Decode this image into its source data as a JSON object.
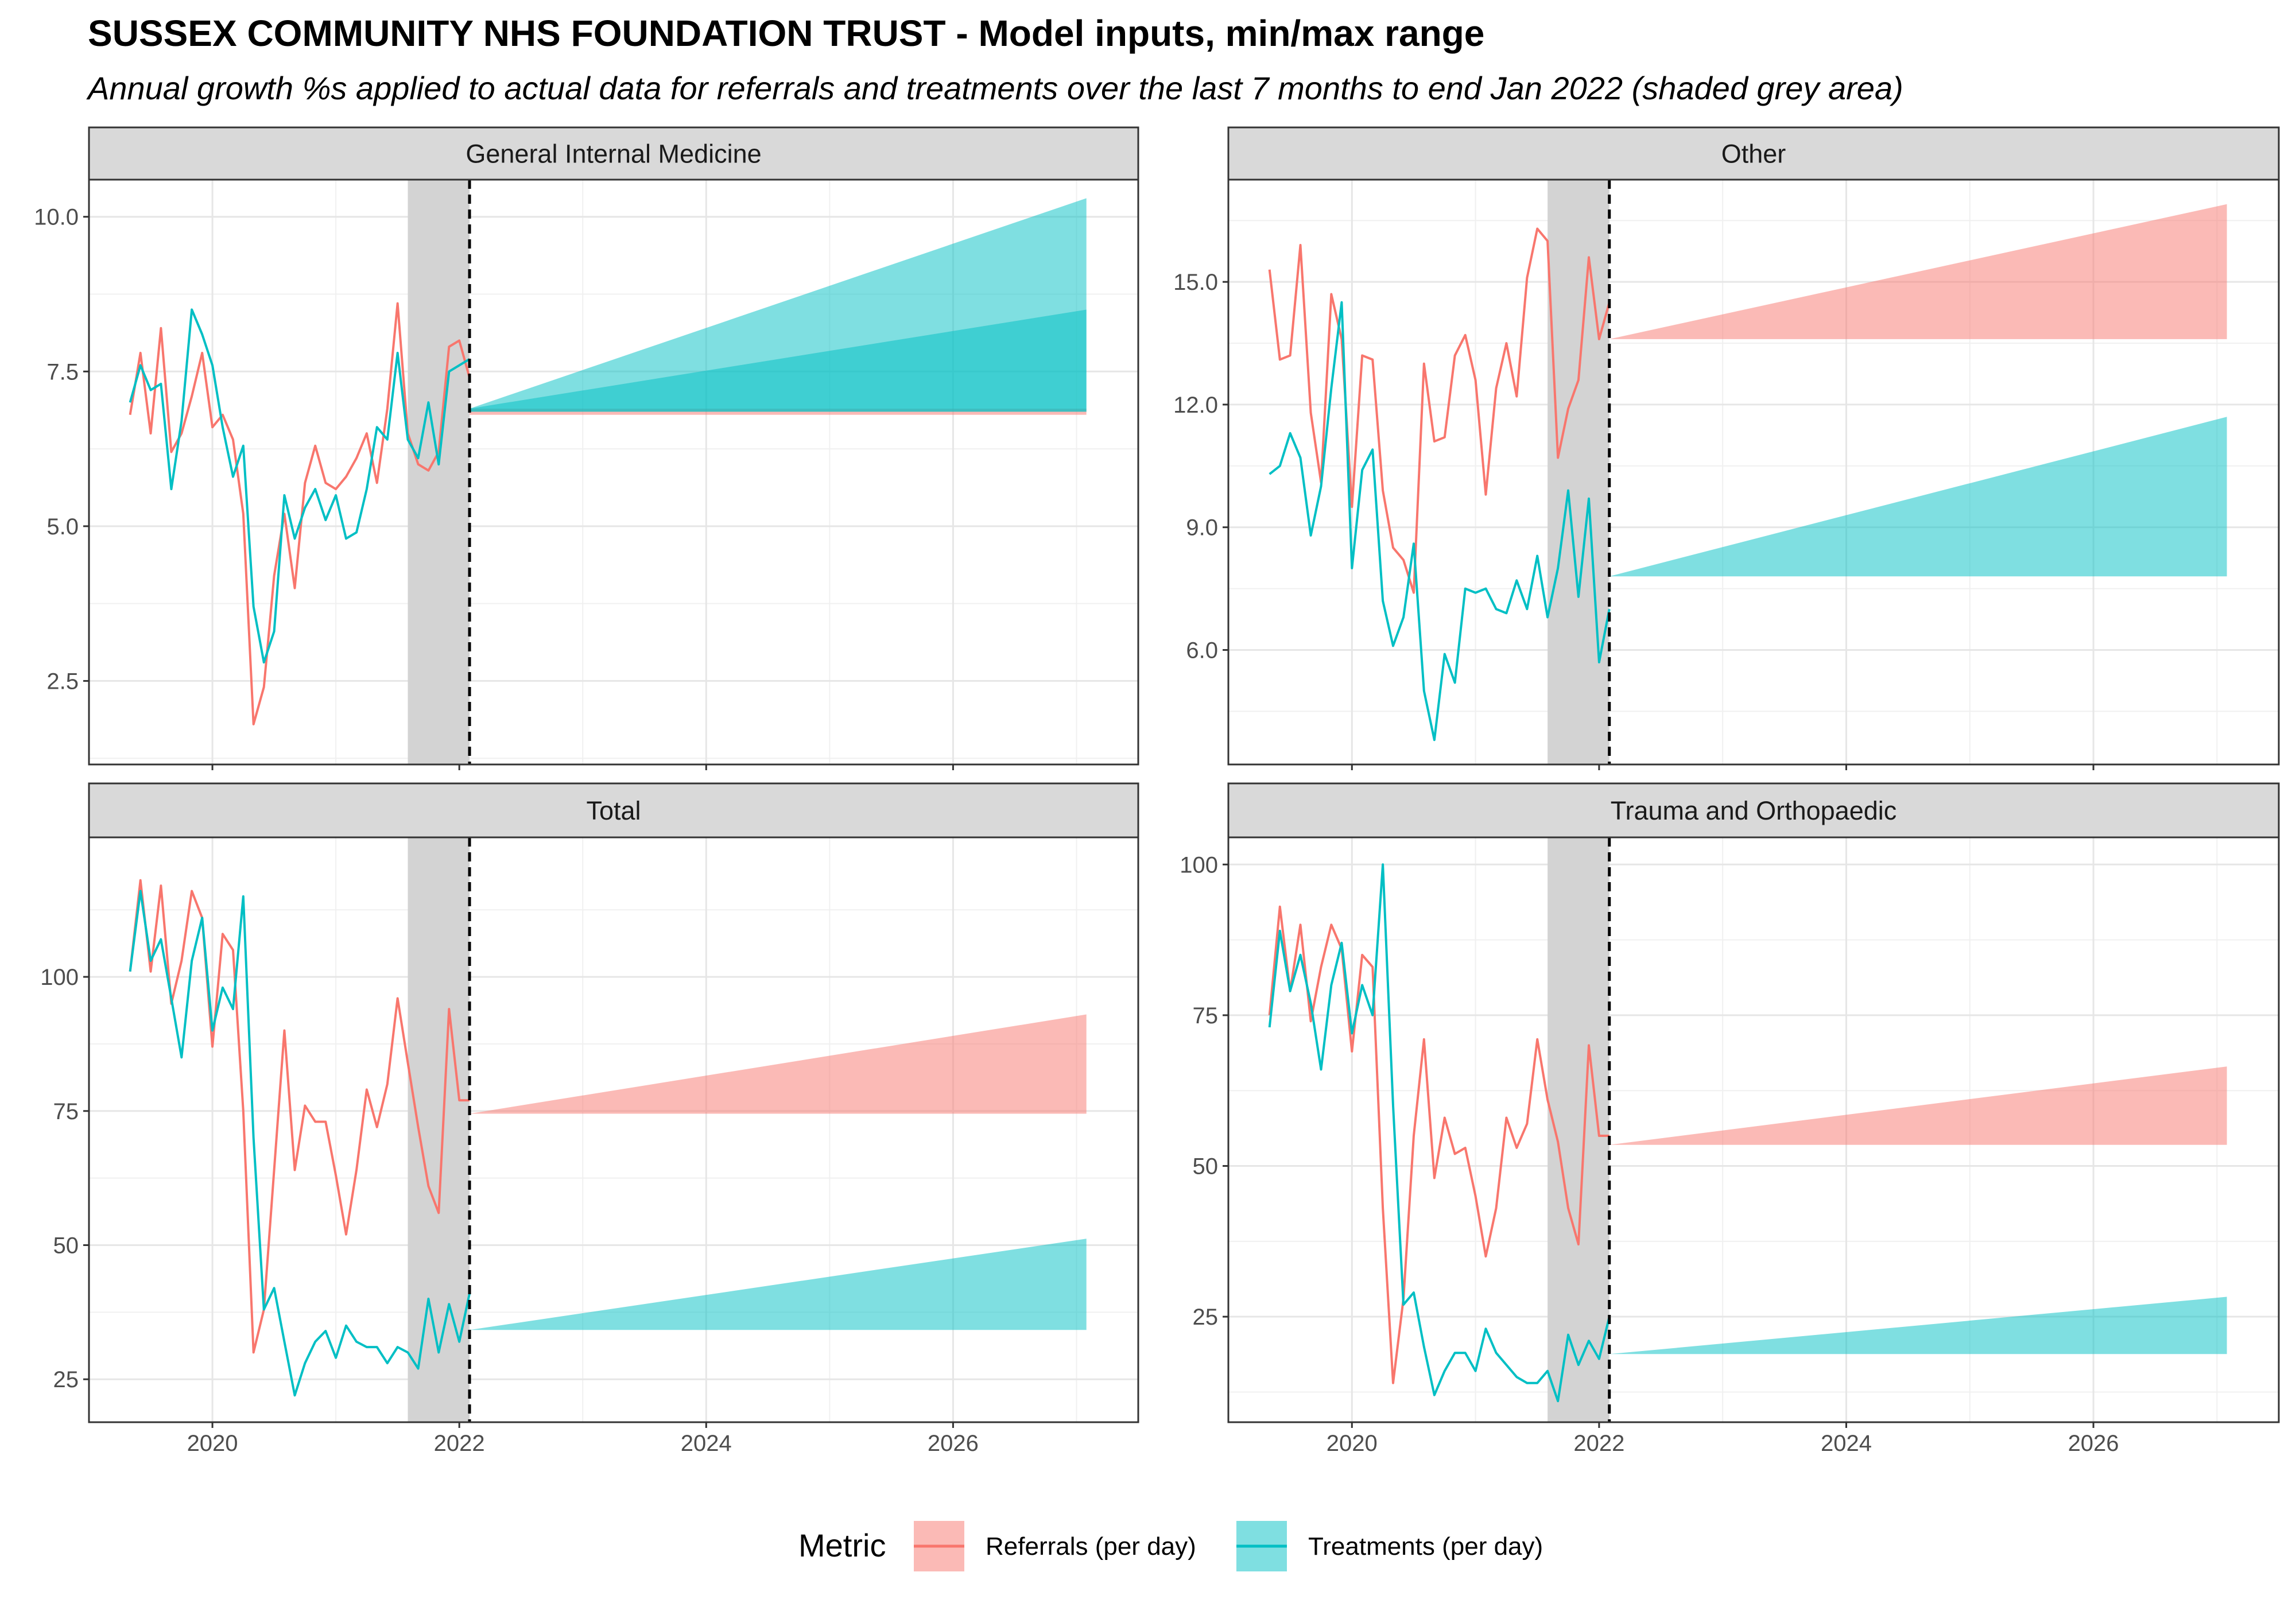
{
  "title": "SUSSEX COMMUNITY NHS FOUNDATION TRUST - Model inputs, min/max range",
  "subtitle": "Annual growth %s applied to actual data for referrals and treatments over the last 7 months to end Jan 2022 (shaded grey area)",
  "legend": {
    "title": "Metric",
    "items": [
      {
        "label": "Referrals (per day)",
        "color": "#F8766D"
      },
      {
        "label": "Treatments (per day)",
        "color": "#00BFC4"
      }
    ]
  },
  "x_ticks": [
    "2020",
    "2022",
    "2024",
    "2026"
  ],
  "chart_data": [
    {
      "type": "line",
      "panel": "General Internal Medicine",
      "xlim": [
        2019.0,
        2027.5
      ],
      "ylim": [
        1.15,
        10.6
      ],
      "y_ticks": [
        "2.5",
        "5.0",
        "7.5",
        "10.0"
      ],
      "y_tick_values": [
        2.5,
        5.0,
        7.5,
        10.0
      ],
      "shaded_period": [
        2021.583,
        2022.083
      ],
      "forecast_start": 2022.083,
      "x": [
        2019.333,
        2019.417,
        2019.5,
        2019.583,
        2019.667,
        2019.75,
        2019.833,
        2019.917,
        2020.0,
        2020.083,
        2020.167,
        2020.25,
        2020.333,
        2020.417,
        2020.5,
        2020.583,
        2020.667,
        2020.75,
        2020.833,
        2020.917,
        2021.0,
        2021.083,
        2021.167,
        2021.25,
        2021.333,
        2021.417,
        2021.5,
        2021.583,
        2021.667,
        2021.75,
        2021.833,
        2021.917,
        2022.0,
        2022.083
      ],
      "series": [
        {
          "name": "Referrals (per day)",
          "values": [
            6.8,
            7.8,
            6.5,
            8.2,
            6.2,
            6.5,
            7.1,
            7.8,
            6.6,
            6.8,
            6.4,
            5.2,
            1.8,
            2.4,
            4.2,
            5.2,
            4.0,
            5.7,
            6.3,
            5.7,
            5.6,
            5.8,
            6.1,
            6.5,
            5.7,
            6.9,
            8.6,
            6.5,
            6.0,
            5.9,
            6.2,
            7.9,
            8.0,
            7.4
          ]
        },
        {
          "name": "Treatments (per day)",
          "values": [
            7.0,
            7.6,
            7.2,
            7.3,
            5.6,
            6.7,
            8.5,
            8.1,
            7.6,
            6.6,
            5.8,
            6.3,
            3.7,
            2.8,
            3.3,
            5.5,
            4.8,
            5.3,
            5.6,
            5.1,
            5.5,
            4.8,
            4.9,
            5.6,
            6.6,
            6.4,
            7.8,
            6.4,
            6.1,
            7.0,
            6.0,
            7.5,
            7.6,
            7.7
          ]
        }
      ],
      "projections": [
        {
          "name": "Referrals (per day)",
          "x": [
            2022.083,
            2027.08
          ],
          "low": [
            6.8,
            6.8
          ],
          "high": [
            6.9,
            6.9
          ]
        },
        {
          "name": "Treatments (per day)",
          "x": [
            2022.083,
            2027.08
          ],
          "low": [
            6.85,
            6.85
          ],
          "high": [
            6.9,
            10.3
          ]
        },
        {
          "name": "Treatments (per day)",
          "x": [
            2022.083,
            2027.08
          ],
          "low": [
            6.85,
            6.85
          ],
          "high": [
            6.9,
            8.5
          ]
        }
      ]
    },
    {
      "type": "line",
      "panel": "Other",
      "xlim": [
        2019.0,
        2027.5
      ],
      "ylim": [
        3.2,
        17.5
      ],
      "y_ticks": [
        "6.0",
        "9.0",
        "12.0",
        "15.0"
      ],
      "y_tick_values": [
        6.0,
        9.0,
        12.0,
        15.0
      ],
      "shaded_period": [
        2021.583,
        2022.083
      ],
      "forecast_start": 2022.083,
      "x": [
        2019.333,
        2019.417,
        2019.5,
        2019.583,
        2019.667,
        2019.75,
        2019.833,
        2019.917,
        2020.0,
        2020.083,
        2020.167,
        2020.25,
        2020.333,
        2020.417,
        2020.5,
        2020.583,
        2020.667,
        2020.75,
        2020.833,
        2020.917,
        2021.0,
        2021.083,
        2021.167,
        2021.25,
        2021.333,
        2021.417,
        2021.5,
        2021.583,
        2021.667,
        2021.75,
        2021.833,
        2021.917,
        2022.0,
        2022.083
      ],
      "series": [
        {
          "name": "Referrals (per day)",
          "values": [
            15.3,
            13.1,
            13.2,
            15.9,
            11.8,
            10.1,
            14.7,
            13.6,
            9.5,
            13.2,
            13.1,
            9.9,
            8.5,
            8.2,
            7.4,
            13.0,
            11.1,
            11.2,
            13.2,
            13.7,
            12.6,
            9.8,
            12.4,
            13.5,
            12.2,
            15.1,
            16.3,
            16.0,
            10.7,
            11.9,
            12.6,
            15.6,
            13.6,
            14.5
          ]
        },
        {
          "name": "Treatments (per day)",
          "values": [
            10.3,
            10.5,
            11.3,
            10.7,
            8.8,
            10.0,
            12.4,
            14.5,
            8.0,
            10.4,
            10.9,
            7.2,
            6.1,
            6.8,
            8.6,
            5.0,
            3.8,
            5.9,
            5.2,
            7.5,
            7.4,
            7.5,
            7.0,
            6.9,
            7.7,
            7.0,
            8.3,
            6.8,
            8.0,
            9.9,
            7.3,
            9.7,
            5.7,
            7.0
          ]
        }
      ],
      "projections": [
        {
          "name": "Referrals (per day)",
          "x": [
            2022.083,
            2027.08
          ],
          "low": [
            13.6,
            13.6
          ],
          "high": [
            13.6,
            16.9
          ]
        },
        {
          "name": "Treatments (per day)",
          "x": [
            2022.083,
            2027.08
          ],
          "low": [
            7.8,
            7.8
          ],
          "high": [
            7.8,
            11.7
          ]
        }
      ]
    },
    {
      "type": "line",
      "panel": "Total",
      "xlim": [
        2019.0,
        2027.5
      ],
      "ylim": [
        17.0,
        126.0
      ],
      "y_ticks": [
        "25",
        "50",
        "75",
        "100"
      ],
      "y_tick_values": [
        25,
        50,
        75,
        100
      ],
      "shaded_period": [
        2021.583,
        2022.083
      ],
      "forecast_start": 2022.083,
      "x": [
        2019.333,
        2019.417,
        2019.5,
        2019.583,
        2019.667,
        2019.75,
        2019.833,
        2019.917,
        2020.0,
        2020.083,
        2020.167,
        2020.25,
        2020.333,
        2020.417,
        2020.5,
        2020.583,
        2020.667,
        2020.75,
        2020.833,
        2020.917,
        2021.0,
        2021.083,
        2021.167,
        2021.25,
        2021.333,
        2021.417,
        2021.5,
        2021.583,
        2021.667,
        2021.75,
        2021.833,
        2021.917,
        2022.0,
        2022.083
      ],
      "series": [
        {
          "name": "Referrals (per day)",
          "values": [
            101,
            118,
            101,
            117,
            95,
            103,
            116,
            111,
            87,
            108,
            105,
            75,
            30,
            38,
            64,
            90,
            64,
            76,
            73,
            73,
            63,
            52,
            64,
            79,
            72,
            80,
            96,
            84,
            72,
            61,
            56,
            94,
            77,
            77
          ]
        },
        {
          "name": "Treatments (per day)",
          "values": [
            101,
            116,
            103,
            107,
            96,
            85,
            103,
            111,
            90,
            98,
            94,
            115,
            70,
            38,
            42,
            32,
            22,
            28,
            32,
            34,
            29,
            35,
            32,
            31,
            31,
            28,
            31,
            30,
            27,
            40,
            30,
            39,
            32,
            41
          ]
        }
      ],
      "projections": [
        {
          "name": "Referrals (per day)",
          "x": [
            2022.083,
            2027.08
          ],
          "low": [
            74.5,
            74.5
          ],
          "high": [
            74.5,
            93
          ]
        },
        {
          "name": "Treatments (per day)",
          "x": [
            2022.083,
            2027.08
          ],
          "low": [
            34.2,
            34.2
          ],
          "high": [
            34.2,
            51.2
          ]
        }
      ]
    },
    {
      "type": "line",
      "panel": "Trauma and Orthopaedic",
      "xlim": [
        2019.0,
        2027.5
      ],
      "ylim": [
        7.5,
        104.5
      ],
      "y_ticks": [
        "25",
        "50",
        "75",
        "100"
      ],
      "y_tick_values": [
        25,
        50,
        75,
        100
      ],
      "shaded_period": [
        2021.583,
        2022.083
      ],
      "forecast_start": 2022.083,
      "x": [
        2019.333,
        2019.417,
        2019.5,
        2019.583,
        2019.667,
        2019.75,
        2019.833,
        2019.917,
        2020.0,
        2020.083,
        2020.167,
        2020.25,
        2020.333,
        2020.417,
        2020.5,
        2020.583,
        2020.667,
        2020.75,
        2020.833,
        2020.917,
        2021.0,
        2021.083,
        2021.167,
        2021.25,
        2021.333,
        2021.417,
        2021.5,
        2021.583,
        2021.667,
        2021.75,
        2021.833,
        2021.917,
        2022.0,
        2022.083
      ],
      "series": [
        {
          "name": "Referrals (per day)",
          "values": [
            75,
            93,
            79,
            90,
            74,
            83,
            90,
            86,
            69,
            85,
            83,
            43,
            14,
            28,
            55,
            71,
            48,
            58,
            52,
            53,
            45,
            35,
            43,
            58,
            53,
            57,
            71,
            61,
            54,
            43,
            37,
            70,
            55,
            55
          ]
        },
        {
          "name": "Treatments (per day)",
          "values": [
            73,
            89,
            79,
            85,
            77,
            66,
            80,
            87,
            72,
            80,
            75,
            100,
            60,
            27,
            29,
            20,
            12,
            16,
            19,
            19,
            16,
            23,
            19,
            17,
            15,
            14,
            14,
            16,
            11,
            22,
            17,
            21,
            18,
            25
          ]
        }
      ],
      "projections": [
        {
          "name": "Referrals (per day)",
          "x": [
            2022.083,
            2027.08
          ],
          "low": [
            53.5,
            53.5
          ],
          "high": [
            53.5,
            66.5
          ]
        },
        {
          "name": "Treatments (per day)",
          "x": [
            2022.083,
            2027.08
          ],
          "low": [
            18.8,
            18.8
          ],
          "high": [
            18.8,
            28.3
          ]
        }
      ]
    }
  ]
}
